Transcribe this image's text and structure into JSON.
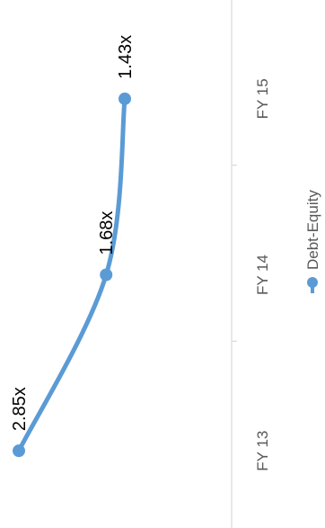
{
  "chart_data": {
    "type": "line",
    "orientation": "rotated-90-clockwise",
    "categories": [
      "FY 13",
      "FY 14",
      "FY 15"
    ],
    "series": [
      {
        "name": "Debt-Equity",
        "values": [
          2.85,
          1.68,
          1.43
        ],
        "labels": [
          "2.85x",
          "1.68x",
          "1.43x"
        ],
        "color": "#5B9BD5"
      }
    ],
    "ylim": [
      1.0,
      3.0
    ],
    "title": "",
    "xlabel": "",
    "ylabel": "",
    "grid": false,
    "legend_position": "bottom"
  }
}
